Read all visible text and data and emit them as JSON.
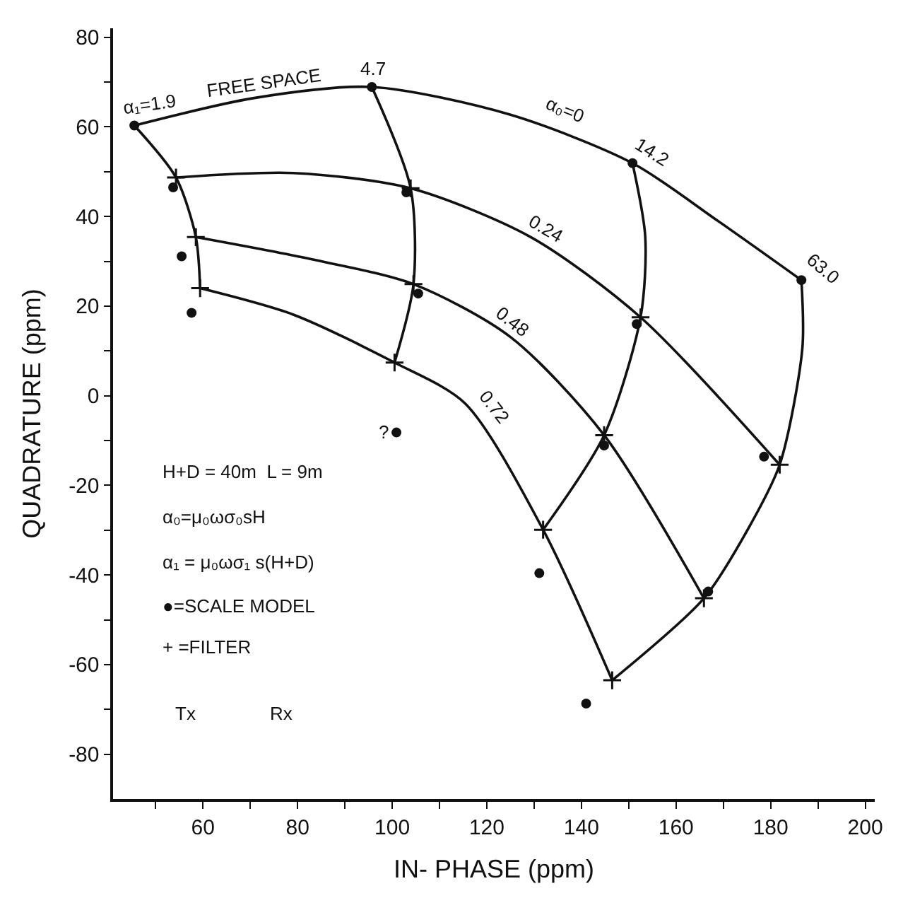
{
  "chart_data": {
    "type": "line",
    "xlabel": "IN- PHASE (ppm)",
    "ylabel": "QUADRATURE (ppm)",
    "xlim": [
      41,
      202
    ],
    "ylim": [
      -90,
      82
    ],
    "xticks": [
      {
        "value": 50,
        "label": null
      },
      60,
      {
        "value": 70,
        "label": null
      },
      80,
      {
        "value": 90,
        "label": null
      },
      100,
      {
        "value": 110,
        "label": null
      },
      120,
      {
        "value": 130,
        "label": null
      },
      140,
      {
        "value": 150,
        "label": null
      },
      160,
      {
        "value": 170,
        "label": null
      },
      180,
      {
        "value": 190,
        "label": null
      },
      200
    ],
    "yticks": [
      {
        "value": -80,
        "label": "-80"
      },
      {
        "value": -70,
        "label": null
      },
      {
        "value": -60,
        "label": "-60"
      },
      {
        "value": -50,
        "label": null
      },
      {
        "value": -40,
        "label": "-40"
      },
      {
        "value": -30,
        "label": null
      },
      {
        "value": -20,
        "label": "-20"
      },
      {
        "value": -10,
        "label": null
      },
      0,
      {
        "value": 10,
        "label": null
      },
      20,
      {
        "value": 30,
        "label": null
      },
      40,
      {
        "value": 50,
        "label": null
      },
      60,
      {
        "value": 70,
        "label": null
      },
      80
    ],
    "marker": "none",
    "line_style": "solid",
    "series": [
      {
        "color": "#111111",
        "x": [
          45.5,
          70.6,
          95.7,
          125.0,
          150.8,
          168.6,
          186.5
        ],
        "values": [
          60.3,
          66.4,
          68.9,
          62.7,
          51.9,
          39.2,
          25.8
        ]
      },
      {
        "color": "#111111",
        "x": [
          54.3,
          79.1,
          103.9,
          129.3,
          152.5,
          181.9
        ],
        "values": [
          48.7,
          49.7,
          46.3,
          35.4,
          17.5,
          -15.4
        ]
      },
      {
        "color": "#111111",
        "x": [
          58.5,
          82.7,
          104.5,
          125.0,
          144.8,
          165.9
        ],
        "values": [
          35.4,
          30.5,
          24.9,
          13.1,
          -8.8,
          -45.2
        ]
      },
      {
        "color": "#111111",
        "x": [
          59.4,
          79.1,
          100.5,
          115.4,
          131.9,
          146.5
        ],
        "values": [
          24.0,
          18.1,
          7.4,
          -1.7,
          -29.9,
          -63.5
        ]
      },
      {
        "color": "#111111",
        "x": [
          45.5,
          54.3,
          58.5,
          59.4
        ],
        "values": [
          60.3,
          48.7,
          35.4,
          24.0
        ]
      },
      {
        "color": "#111111",
        "x": [
          95.7,
          103.9,
          104.5,
          100.5
        ],
        "values": [
          68.9,
          46.3,
          24.9,
          7.4
        ]
      },
      {
        "color": "#111111",
        "x": [
          150.8,
          153.5,
          152.5,
          144.8,
          131.9
        ],
        "values": [
          51.9,
          35.4,
          17.5,
          -8.8,
          -29.9
        ]
      },
      {
        "color": "#111111",
        "x": [
          186.5,
          186.7,
          181.9,
          174.6,
          165.9,
          146.5
        ],
        "values": [
          25.8,
          10.6,
          -15.4,
          -30.9,
          -45.2,
          -63.5
        ]
      },
      {
        "type": "scatter",
        "marker": "circle",
        "color": "#111111",
        "x": [
          45.5,
          95.7,
          150.8,
          186.5,
          53.7,
          55.5,
          57.6,
          103.0,
          105.5,
          151.7,
          100.9,
          144.8,
          178.6,
          131.1,
          166.8,
          141.0
        ],
        "values": [
          60.3,
          68.9,
          51.9,
          25.8,
          46.5,
          31.1,
          18.5,
          45.4,
          22.8,
          16.0,
          -8.2,
          -11.1,
          -13.6,
          -39.6,
          -43.7,
          -68.7
        ]
      },
      {
        "type": "scatter",
        "marker": "cross",
        "color": "#111111",
        "x": [
          54.3,
          58.5,
          59.4,
          103.9,
          104.5,
          100.5,
          152.5,
          144.8,
          131.9,
          181.9,
          165.9,
          146.5
        ],
        "values": [
          48.7,
          35.4,
          24.0,
          46.3,
          24.9,
          7.4,
          17.5,
          -8.8,
          -29.9,
          -15.4,
          -45.2,
          -63.5
        ]
      }
    ],
    "annotations": [
      "α₁=1.9",
      "FREE SPACE",
      "4.7",
      "α₀=0",
      "14.2",
      "63.0",
      "0.24",
      "0.48",
      "0.72",
      "?",
      "H+D = 40m  L = 9m",
      "α₀=μ₀ωσ₀sH",
      "α₁ = μ₀ωσ₁ s(H+D)",
      "●=SCALE MODEL",
      "+ =FILTER",
      "Tx",
      "Rx"
    ]
  }
}
